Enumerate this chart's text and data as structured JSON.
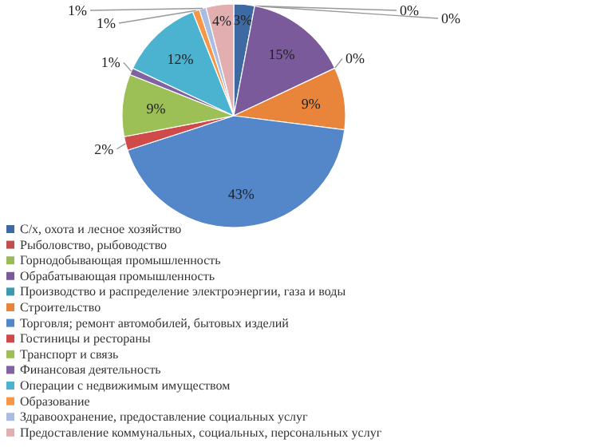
{
  "chart_data": {
    "type": "pie",
    "categories": [
      "С/х, охота и лесное хозяйство",
      "Рыболовство, рыбоводство",
      "Горнодобывающая промышленность",
      "Обрабатывающая промышленность",
      "Производство  и распределение электроэнергии, газа и воды",
      "Строительство",
      "Торговля; ремонт автомобилей, бытовых изделий",
      "Гостиницы и рестораны",
      "Транспорт и связь",
      "Финансовая деятельность",
      "Операции с недвижимым имуществом",
      "Образование",
      "Здравоохранение, предоставление социальных услуг",
      "Предоставление коммунальных, социальных, персональных услуг"
    ],
    "values": [
      3,
      0,
      0,
      15,
      0,
      9,
      43,
      2,
      9,
      1,
      12,
      1,
      1,
      4
    ],
    "colors": [
      "#3d6aa3",
      "#c0504d",
      "#9bbb59",
      "#7a5a9a",
      "#3b9ab0",
      "#e9843b",
      "#5387c9",
      "#d04a4a",
      "#9cc055",
      "#8064a2",
      "#4bb3d0",
      "#f79646",
      "#a9bde3",
      "#e3aeb0"
    ],
    "value_labels": [
      "3%",
      "0%",
      "0%",
      "15%",
      "0%",
      "9%",
      "43%",
      "2%",
      "9%",
      "1%",
      "12%",
      "1%",
      "1%",
      "4%"
    ],
    "legend": "bottom"
  }
}
